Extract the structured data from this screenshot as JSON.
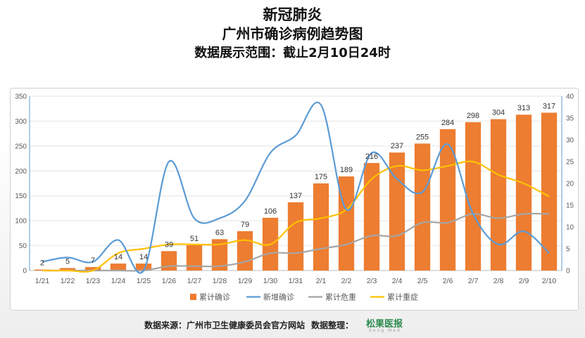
{
  "header": {
    "title_line1": "新冠肺炎",
    "title_line2": "广州市确诊病例趋势图",
    "title_line3": "数据展示范围：截止2月10日24时"
  },
  "footer": {
    "source": "数据来源：广州市卫生健康委员会官方网站",
    "organizer": "数据整理：",
    "logo_text": "松果医报",
    "logo_sub": "Song Med"
  },
  "chart_data": {
    "type": "bar",
    "categories": [
      "1/21",
      "1/22",
      "1/23",
      "1/24",
      "1/25",
      "1/26",
      "1/27",
      "1/28",
      "1/29",
      "1/30",
      "1/31",
      "2/1",
      "2/2",
      "2/3",
      "2/4",
      "2/5",
      "2/6",
      "2/7",
      "2/8",
      "2/9",
      "2/10"
    ],
    "left_axis": {
      "ylim": [
        0,
        350
      ],
      "ticks": [
        0,
        50,
        100,
        150,
        200,
        250,
        300,
        350
      ]
    },
    "right_axis": {
      "ylim": [
        0,
        40
      ],
      "ticks": [
        0,
        5,
        10,
        15,
        20,
        25,
        30,
        35,
        40
      ]
    },
    "grid": true,
    "legend_position": "bottom",
    "series": [
      {
        "name": "累计确诊",
        "kind": "bar",
        "axis": "left",
        "color": "#ED7D31",
        "values": [
          2,
          5,
          7,
          14,
          14,
          39,
          51,
          63,
          79,
          106,
          137,
          175,
          189,
          216,
          237,
          255,
          284,
          298,
          304,
          313,
          317
        ]
      },
      {
        "name": "新增确诊",
        "kind": "line",
        "axis": "right",
        "color": "#5B9BD5",
        "values": [
          2,
          3,
          2,
          7,
          0,
          25,
          12,
          12,
          16,
          27,
          31,
          38,
          14,
          27,
          21,
          18,
          29,
          13,
          6,
          9,
          4
        ]
      },
      {
        "name": "累计危重",
        "kind": "line",
        "axis": "right",
        "color": "#A5A5A5",
        "values": [
          0,
          0,
          0,
          0,
          0,
          1,
          1,
          1,
          2,
          4,
          4,
          5,
          6,
          8,
          8,
          11,
          11,
          13,
          12,
          13,
          13
        ]
      },
      {
        "name": "累计重症",
        "kind": "line",
        "axis": "right",
        "color": "#FFC000",
        "values": [
          0,
          0,
          0,
          4,
          5,
          6,
          6,
          6,
          7,
          6,
          11,
          12,
          14,
          21,
          24,
          23,
          24,
          25,
          22,
          20,
          17
        ]
      }
    ]
  }
}
